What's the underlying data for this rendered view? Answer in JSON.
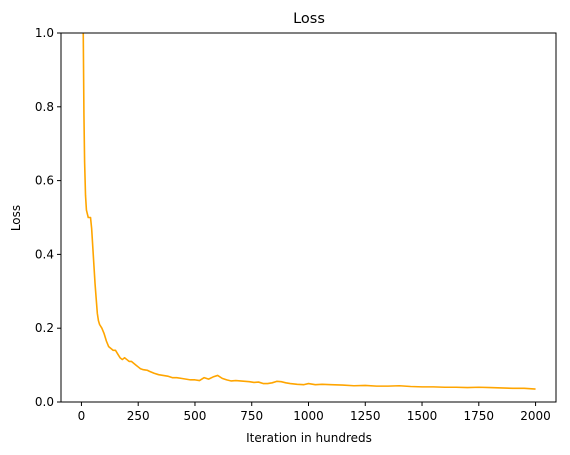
{
  "chart_data": {
    "type": "line",
    "title": "Loss",
    "xlabel": "Iteration in hundreds",
    "ylabel": "Loss",
    "xlim": [
      -90,
      2090
    ],
    "ylim": [
      0,
      1.0
    ],
    "xticks": [
      0,
      250,
      500,
      750,
      1000,
      1250,
      1500,
      1750,
      2000
    ],
    "yticks": [
      0.0,
      0.2,
      0.4,
      0.6,
      0.8,
      1.0
    ],
    "xtick_labels": [
      "0",
      "250",
      "500",
      "750",
      "1000",
      "1250",
      "1500",
      "1750",
      "2000"
    ],
    "ytick_labels": [
      "0.0",
      "0.2",
      "0.4",
      "0.6",
      "0.8",
      "1.0"
    ],
    "grid": false,
    "colors": {
      "series": "#ffa500",
      "axes": "#000000",
      "background": "#ffffff"
    },
    "series": [
      {
        "x": [
          8,
          11,
          14,
          18,
          22,
          26,
          30,
          35,
          40,
          45,
          50,
          55,
          60,
          65,
          70,
          75,
          80,
          90,
          100,
          110,
          120,
          130,
          140,
          150,
          160,
          170,
          180,
          190,
          200,
          210,
          220,
          230,
          240,
          250,
          260,
          270,
          280,
          290,
          300,
          320,
          340,
          360,
          380,
          400,
          420,
          440,
          460,
          480,
          500,
          520,
          540,
          560,
          580,
          600,
          620,
          640,
          660,
          680,
          700,
          720,
          740,
          760,
          780,
          800,
          820,
          840,
          860,
          880,
          900,
          920,
          950,
          980,
          1000,
          1030,
          1060,
          1100,
          1150,
          1200,
          1250,
          1300,
          1350,
          1400,
          1450,
          1500,
          1550,
          1600,
          1650,
          1700,
          1750,
          1800,
          1850,
          1900,
          1950,
          2000
        ],
        "y": [
          1.0,
          0.78,
          0.65,
          0.56,
          0.52,
          0.51,
          0.5,
          0.5,
          0.5,
          0.47,
          0.42,
          0.37,
          0.32,
          0.28,
          0.24,
          0.22,
          0.21,
          0.2,
          0.185,
          0.165,
          0.15,
          0.145,
          0.14,
          0.14,
          0.13,
          0.12,
          0.115,
          0.12,
          0.115,
          0.11,
          0.11,
          0.105,
          0.1,
          0.095,
          0.09,
          0.088,
          0.087,
          0.086,
          0.083,
          0.078,
          0.074,
          0.072,
          0.07,
          0.066,
          0.066,
          0.064,
          0.062,
          0.06,
          0.06,
          0.058,
          0.066,
          0.062,
          0.068,
          0.072,
          0.064,
          0.06,
          0.057,
          0.058,
          0.057,
          0.056,
          0.055,
          0.053,
          0.054,
          0.05,
          0.05,
          0.052,
          0.056,
          0.055,
          0.052,
          0.05,
          0.048,
          0.047,
          0.05,
          0.047,
          0.048,
          0.047,
          0.046,
          0.044,
          0.045,
          0.043,
          0.043,
          0.044,
          0.042,
          0.041,
          0.041,
          0.04,
          0.04,
          0.039,
          0.04,
          0.039,
          0.038,
          0.037,
          0.037,
          0.035
        ]
      }
    ]
  }
}
